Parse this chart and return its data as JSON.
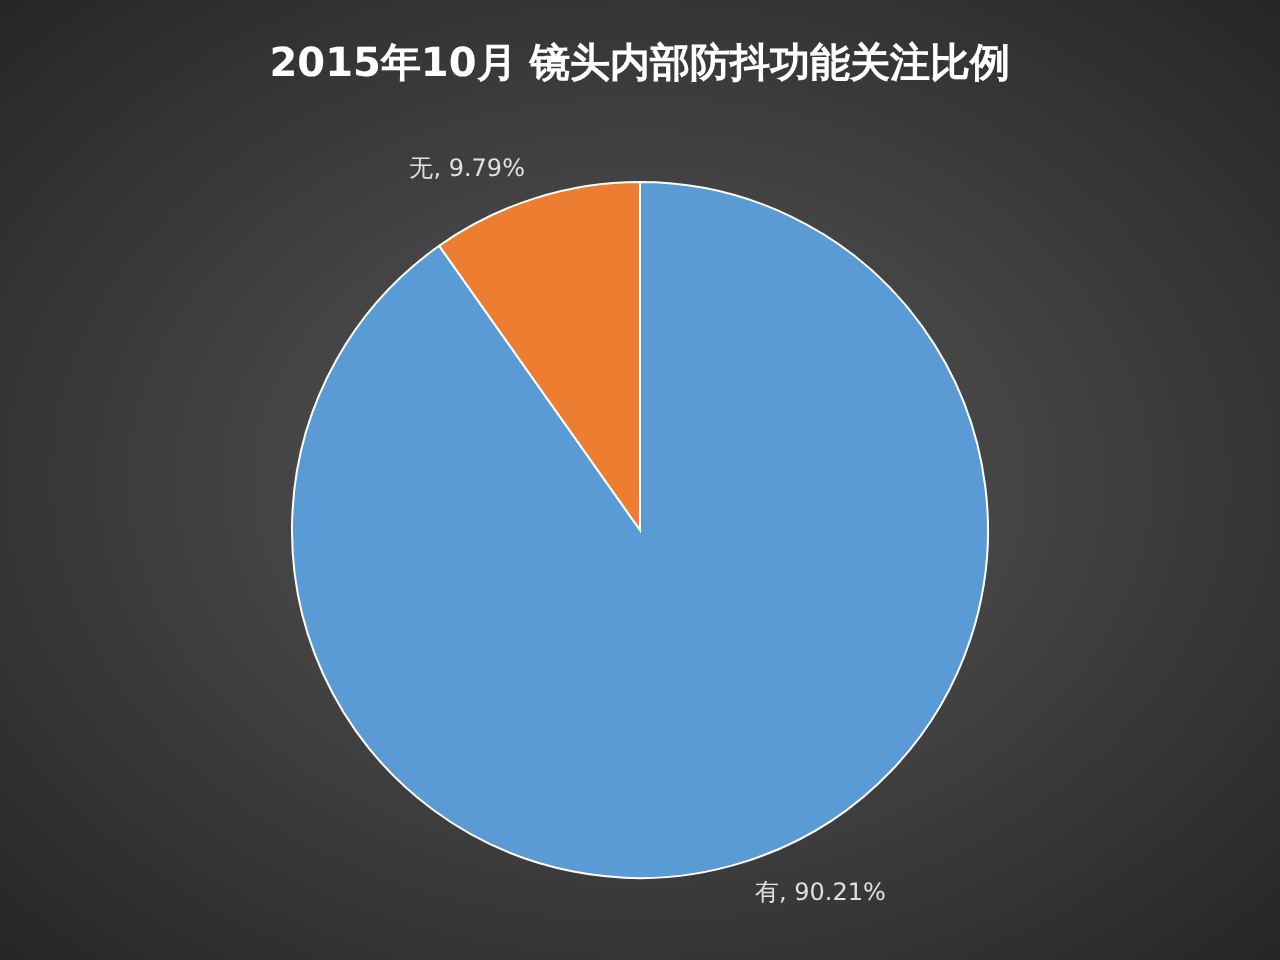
{
  "chart_data": {
    "type": "pie",
    "title": "2015年10月 镜头内部防抖功能关注比例",
    "categories": [
      "有",
      "无"
    ],
    "values": [
      90.21,
      9.79
    ],
    "colors": [
      "#5b9bd5",
      "#ed7d31"
    ],
    "value_labels": [
      ", 90.21%",
      ", 9.79%"
    ]
  }
}
